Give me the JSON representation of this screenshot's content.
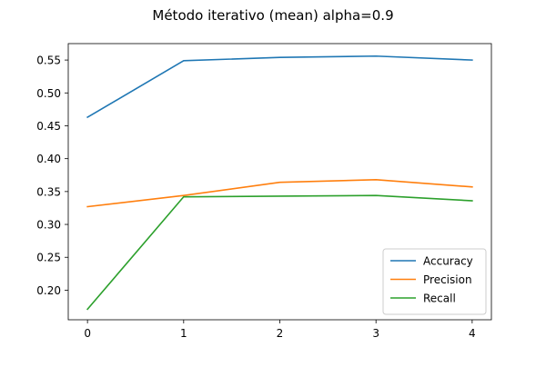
{
  "chart_data": {
    "type": "line",
    "title": "Método iterativo (mean) alpha=0.9",
    "xlabel": "",
    "ylabel": "",
    "x": [
      0,
      1,
      2,
      3,
      4
    ],
    "xticks": [
      "0",
      "1",
      "2",
      "3",
      "4"
    ],
    "yticks": [
      "0.20",
      "0.25",
      "0.30",
      "0.35",
      "0.40",
      "0.45",
      "0.50",
      "0.55"
    ],
    "xlim": [
      -0.2,
      4.2
    ],
    "ylim": [
      0.155,
      0.575
    ],
    "grid": false,
    "legend_position": "lower-right",
    "series": [
      {
        "name": "Accuracy",
        "color": "#1f77b4",
        "values": [
          0.463,
          0.549,
          0.554,
          0.556,
          0.55
        ]
      },
      {
        "name": "Precision",
        "color": "#ff7f0e",
        "values": [
          0.327,
          0.344,
          0.364,
          0.368,
          0.357
        ]
      },
      {
        "name": "Recall",
        "color": "#2ca02c",
        "values": [
          0.171,
          0.342,
          0.343,
          0.344,
          0.336
        ]
      }
    ]
  }
}
